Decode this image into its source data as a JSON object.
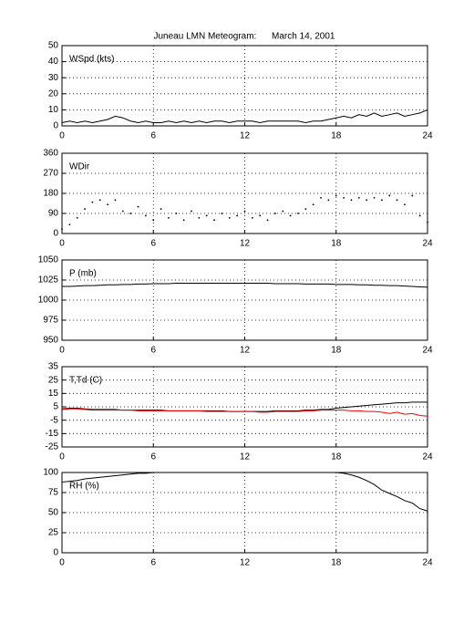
{
  "title": "Juneau LMN Meteogram:      March 14, 2001",
  "chart_data": [
    {
      "type": "line",
      "title": "WSpd (kts)",
      "x": [
        0,
        0.5,
        1,
        1.5,
        2,
        2.5,
        3,
        3.5,
        4,
        4.5,
        5,
        5.5,
        6,
        6.5,
        7,
        7.5,
        8,
        8.5,
        9,
        9.5,
        10,
        10.5,
        11,
        11.5,
        12,
        12.5,
        13,
        13.5,
        14,
        14.5,
        15,
        15.5,
        16,
        16.5,
        17,
        17.5,
        18,
        18.5,
        19,
        19.5,
        20,
        20.5,
        21,
        21.5,
        22,
        22.5,
        23,
        23.5,
        24
      ],
      "series": [
        {
          "color": "#000000",
          "values": [
            2,
            3,
            2,
            3,
            2,
            3,
            4,
            6,
            5,
            3,
            2,
            3,
            2,
            2,
            3,
            2,
            3,
            2,
            3,
            2,
            3,
            3,
            2,
            3,
            3,
            3,
            2,
            3,
            3,
            3,
            3,
            3,
            2,
            3,
            3,
            4,
            5,
            6,
            5,
            7,
            6,
            8,
            6,
            7,
            8,
            6,
            7,
            8,
            10
          ]
        }
      ],
      "xlim": [
        0,
        24
      ],
      "xticks": [
        0,
        6,
        12,
        18,
        24
      ],
      "ylim": [
        0,
        50
      ],
      "yticks": [
        0,
        10,
        20,
        30,
        40,
        50
      ],
      "grid": true
    },
    {
      "type": "scatter",
      "title": "WDir",
      "x": [
        0,
        0.5,
        1,
        1.5,
        2,
        2.5,
        3,
        3.5,
        4,
        4.5,
        5,
        5.5,
        6,
        6.5,
        7,
        7.5,
        8,
        8.5,
        9,
        9.5,
        10,
        10.5,
        11,
        11.5,
        12,
        12.5,
        13,
        13.5,
        14,
        14.5,
        15,
        15.5,
        16,
        16.5,
        17,
        17.5,
        18,
        18.5,
        19,
        19.5,
        20,
        20.5,
        21,
        21.5,
        22,
        22.5,
        23,
        23.5,
        24
      ],
      "series": [
        {
          "color": "#000000",
          "values": [
            20,
            40,
            70,
            110,
            140,
            150,
            130,
            150,
            100,
            90,
            120,
            80,
            60,
            110,
            70,
            90,
            60,
            100,
            70,
            80,
            60,
            90,
            70,
            80,
            100,
            70,
            80,
            60,
            90,
            100,
            80,
            90,
            110,
            130,
            160,
            150,
            170,
            160,
            150,
            160,
            150,
            160,
            150,
            170,
            150,
            130,
            170,
            80,
            50
          ]
        }
      ],
      "xlim": [
        0,
        24
      ],
      "xticks": [
        0,
        6,
        12,
        18,
        24
      ],
      "ylim": [
        0,
        360
      ],
      "yticks": [
        0,
        90,
        180,
        270,
        360
      ],
      "grid": true
    },
    {
      "type": "line",
      "title": "P (mb)",
      "x": [
        0,
        0.5,
        1,
        1.5,
        2,
        2.5,
        3,
        3.5,
        4,
        4.5,
        5,
        5.5,
        6,
        6.5,
        7,
        7.5,
        8,
        8.5,
        9,
        9.5,
        10,
        10.5,
        11,
        11.5,
        12,
        12.5,
        13,
        13.5,
        14,
        14.5,
        15,
        15.5,
        16,
        16.5,
        17,
        17.5,
        18,
        18.5,
        19,
        19.5,
        20,
        20.5,
        21,
        21.5,
        22,
        22.5,
        23,
        23.5,
        24
      ],
      "series": [
        {
          "color": "#000000",
          "values": [
            1017,
            1017,
            1017.5,
            1018,
            1018,
            1018.5,
            1019,
            1019,
            1019.5,
            1019.5,
            1020,
            1020,
            1020.5,
            1020.5,
            1020.5,
            1021,
            1021,
            1021,
            1021,
            1021,
            1021,
            1021,
            1021,
            1021,
            1021,
            1021,
            1021,
            1021,
            1020.5,
            1020.5,
            1020.5,
            1020.5,
            1020,
            1020,
            1020,
            1020,
            1019.5,
            1019.5,
            1019.5,
            1019,
            1019,
            1018.5,
            1018.5,
            1018,
            1018,
            1017.5,
            1017,
            1016.5,
            1016
          ]
        }
      ],
      "xlim": [
        0,
        24
      ],
      "xticks": [
        0,
        6,
        12,
        18,
        24
      ],
      "ylim": [
        950,
        1050
      ],
      "yticks": [
        950,
        975,
        1000,
        1025,
        1050
      ],
      "grid": true
    },
    {
      "type": "line",
      "title": "T,Td (C)",
      "x": [
        0,
        0.5,
        1,
        1.5,
        2,
        2.5,
        3,
        3.5,
        4,
        4.5,
        5,
        5.5,
        6,
        6.5,
        7,
        7.5,
        8,
        8.5,
        9,
        9.5,
        10,
        10.5,
        11,
        11.5,
        12,
        12.5,
        13,
        13.5,
        14,
        14.5,
        15,
        15.5,
        16,
        16.5,
        17,
        17.5,
        18,
        18.5,
        19,
        19.5,
        20,
        20.5,
        21,
        21.5,
        22,
        22.5,
        23,
        23.5,
        24
      ],
      "series": [
        {
          "color": "#000000",
          "values": [
            3.5,
            4,
            4,
            3.5,
            3,
            3,
            3,
            3,
            2.5,
            2.5,
            2.5,
            2.5,
            2.5,
            2.5,
            2,
            2,
            2,
            2,
            2,
            2,
            2,
            2,
            1.5,
            1.5,
            1.5,
            1.5,
            1.5,
            1.5,
            2,
            2,
            2,
            2,
            2.5,
            2.5,
            3,
            3,
            4,
            4.5,
            5,
            5.5,
            6,
            6.5,
            7,
            7.5,
            8,
            8,
            8.5,
            8.5,
            8.5
          ]
        },
        {
          "color": "#ff0000",
          "values": [
            3,
            3.5,
            3.5,
            3,
            2.5,
            2.5,
            2.5,
            2.5,
            2.5,
            2.5,
            2,
            2,
            2,
            2,
            2,
            2,
            2,
            2,
            2,
            1.5,
            1.5,
            1.5,
            1.5,
            1.5,
            1.5,
            1.5,
            1,
            1,
            1.5,
            1.5,
            1.5,
            1.5,
            2,
            2,
            2.5,
            2.5,
            2.5,
            2.5,
            2,
            2,
            1.5,
            1.5,
            1,
            0,
            1,
            -0.5,
            0,
            -1.5,
            -2
          ]
        }
      ],
      "xlim": [
        0,
        24
      ],
      "xticks": [
        0,
        6,
        12,
        18,
        24
      ],
      "ylim": [
        -25,
        35
      ],
      "yticks": [
        -25,
        -15,
        -5,
        5,
        15,
        25,
        35
      ],
      "grid": true
    },
    {
      "type": "line",
      "title": "RH (%)",
      "x": [
        0,
        0.5,
        1,
        1.5,
        2,
        2.5,
        3,
        3.5,
        4,
        4.5,
        5,
        5.5,
        6,
        6.5,
        7,
        7.5,
        8,
        8.5,
        9,
        9.5,
        10,
        10.5,
        11,
        11.5,
        12,
        12.5,
        13,
        13.5,
        14,
        14.5,
        15,
        15.5,
        16,
        16.5,
        17,
        17.5,
        18,
        18.5,
        19,
        19.5,
        20,
        20.5,
        21,
        21.5,
        22,
        22.5,
        23,
        23.5,
        24
      ],
      "series": [
        {
          "color": "#000000",
          "values": [
            88,
            89,
            90,
            92,
            93,
            94,
            95,
            96,
            97,
            98,
            99,
            99,
            100,
            100,
            100,
            100,
            100,
            100,
            100,
            100,
            100,
            100,
            100,
            100,
            100,
            100,
            100,
            100,
            100,
            100,
            100,
            100,
            100,
            100,
            100,
            100,
            100,
            99,
            97,
            94,
            90,
            85,
            78,
            74,
            70,
            65,
            62,
            55,
            52
          ]
        }
      ],
      "xlim": [
        0,
        24
      ],
      "xticks": [
        0,
        6,
        12,
        18,
        24
      ],
      "ylim": [
        0,
        100
      ],
      "yticks": [
        0,
        25,
        50,
        75,
        100
      ],
      "grid": true
    }
  ]
}
